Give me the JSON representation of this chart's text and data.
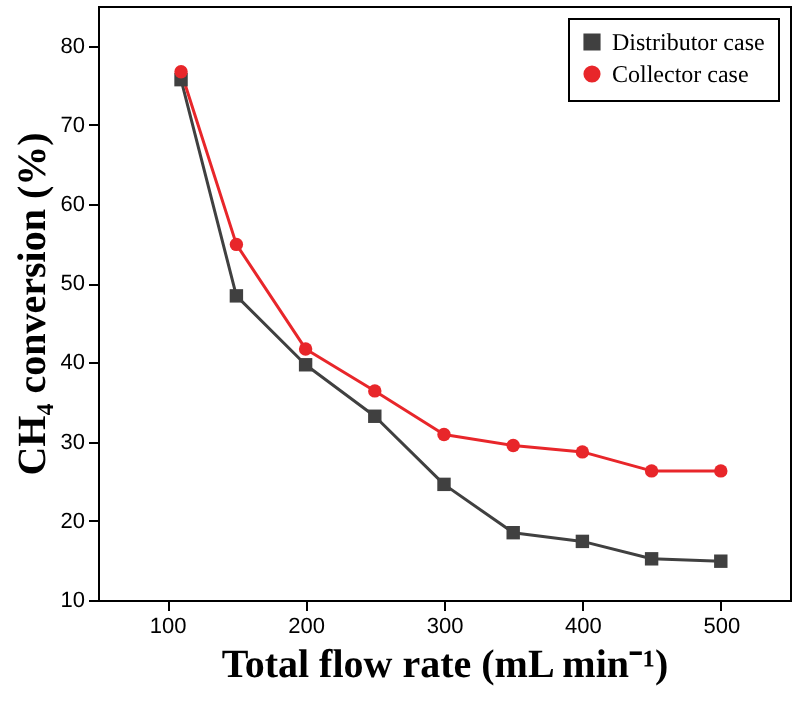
{
  "chart_data": {
    "type": "line",
    "xlabel": "Total flow rate (mL min⁻¹)",
    "ylabel": "CH₄ conversion (%)",
    "x": [
      110,
      150,
      200,
      250,
      300,
      350,
      400,
      450,
      500
    ],
    "series": [
      {
        "name": "Distributor case",
        "color": "#404040",
        "marker": "square",
        "values": [
          75.7,
          48.4,
          39.7,
          33.2,
          24.6,
          18.5,
          17.4,
          15.2,
          14.9
        ]
      },
      {
        "name": "Collector case",
        "color": "#e8262a",
        "marker": "circle",
        "values": [
          76.7,
          54.9,
          41.7,
          36.4,
          30.9,
          29.5,
          28.7,
          26.3,
          26.3
        ]
      }
    ],
    "xlim": [
      50,
      550
    ],
    "xticks": [
      100,
      200,
      300,
      400,
      500
    ],
    "ylim": [
      10,
      85
    ],
    "yticks": [
      10,
      20,
      30,
      40,
      50,
      60,
      70,
      80
    ],
    "grid": false,
    "legend": "top right",
    "line_style": "solid"
  }
}
